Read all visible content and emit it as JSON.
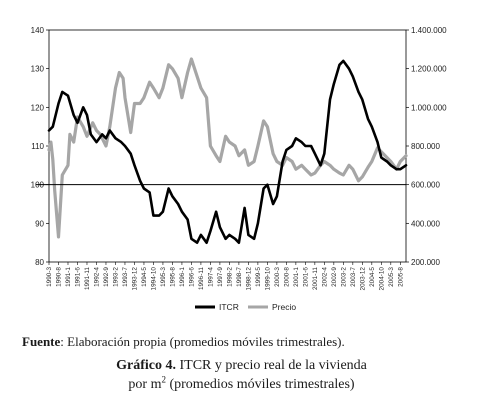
{
  "figure": {
    "source_label": "Fuente",
    "source_text": ": Elaboración propia (promedios móviles trimestrales).",
    "caption_label": "Gráfico 4.",
    "caption_line1": " ITCR y precio real de la vivienda",
    "caption_line2_pre": "por m",
    "caption_line2_sup": "2",
    "caption_line2_post": " (promedios móviles trimestrales)"
  },
  "chart_data": {
    "type": "line",
    "title": "",
    "y_left": {
      "label": "",
      "range": [
        80,
        140
      ],
      "ticks": [
        "80",
        "90",
        "100",
        "110",
        "120",
        "130",
        "140"
      ]
    },
    "y_right": {
      "label": "",
      "range": [
        200000,
        1400000
      ],
      "ticks": [
        "200.000",
        "400.000",
        "600.000",
        "800.000",
        "1.000.000",
        "1.200.000",
        "1.400.000"
      ]
    },
    "reference_line": {
      "axis": "left",
      "value": 100
    },
    "legend_position": "bottom",
    "x_ticks": [
      "1990-3",
      "1990-8",
      "1991-1",
      "1991-6",
      "1991-11",
      "1992-4",
      "1992-9",
      "1993-2",
      "1993-7",
      "1993-12",
      "1994-5",
      "1994-10",
      "1995-3",
      "1995-8",
      "1996-1",
      "1996-6",
      "1996-11",
      "1997-4",
      "1997-9",
      "1998-2",
      "1998-7",
      "1998-12",
      "1999-5",
      "1999-10",
      "2000-3",
      "2000-8",
      "2001-1",
      "2001-6",
      "2001-11",
      "2002-4",
      "2002-9",
      "2003-2",
      "2003-7",
      "2003-12",
      "2004-5",
      "2004-10",
      "2005-3",
      "2005-8"
    ],
    "series": [
      {
        "name": "ITCR",
        "axis": "left",
        "color": "#000000",
        "anchors": [
          [
            "1990-3",
            114
          ],
          [
            "1990-5",
            115
          ],
          [
            "1990-8",
            121
          ],
          [
            "1990-10",
            124
          ],
          [
            "1991-1",
            123
          ],
          [
            "1991-4",
            118
          ],
          [
            "1991-6",
            116
          ],
          [
            "1991-9",
            120
          ],
          [
            "1991-11",
            118
          ],
          [
            "1992-1",
            113
          ],
          [
            "1992-4",
            111
          ],
          [
            "1992-7",
            113
          ],
          [
            "1992-9",
            112
          ],
          [
            "1992-11",
            114
          ],
          [
            "1993-2",
            112
          ],
          [
            "1993-5",
            111
          ],
          [
            "1993-7",
            110
          ],
          [
            "1993-10",
            108
          ],
          [
            "1993-12",
            105
          ],
          [
            "1994-3",
            101
          ],
          [
            "1994-5",
            99
          ],
          [
            "1994-8",
            98
          ],
          [
            "1994-10",
            92
          ],
          [
            "1995-1",
            92
          ],
          [
            "1995-3",
            93
          ],
          [
            "1995-6",
            99
          ],
          [
            "1995-8",
            97
          ],
          [
            "1995-11",
            95
          ],
          [
            "1996-1",
            93
          ],
          [
            "1996-4",
            91
          ],
          [
            "1996-6",
            86
          ],
          [
            "1996-9",
            85
          ],
          [
            "1996-11",
            87
          ],
          [
            "1997-2",
            85
          ],
          [
            "1997-4",
            88
          ],
          [
            "1997-7",
            93
          ],
          [
            "1997-9",
            89
          ],
          [
            "1997-12",
            86
          ],
          [
            "1998-2",
            87
          ],
          [
            "1998-5",
            86
          ],
          [
            "1998-7",
            85
          ],
          [
            "1998-10",
            94
          ],
          [
            "1998-12",
            87
          ],
          [
            "1999-3",
            86
          ],
          [
            "1999-5",
            90
          ],
          [
            "1999-8",
            99
          ],
          [
            "1999-10",
            100
          ],
          [
            "2000-1",
            95
          ],
          [
            "2000-3",
            97
          ],
          [
            "2000-6",
            106
          ],
          [
            "2000-8",
            109
          ],
          [
            "2000-11",
            110
          ],
          [
            "2001-1",
            112
          ],
          [
            "2001-4",
            111
          ],
          [
            "2001-6",
            110
          ],
          [
            "2001-9",
            110
          ],
          [
            "2001-11",
            108
          ],
          [
            "2002-2",
            105
          ],
          [
            "2002-4",
            108
          ],
          [
            "2002-7",
            122
          ],
          [
            "2002-9",
            126
          ],
          [
            "2002-12",
            131
          ],
          [
            "2003-2",
            132
          ],
          [
            "2003-5",
            130
          ],
          [
            "2003-7",
            128
          ],
          [
            "2003-10",
            124
          ],
          [
            "2003-12",
            122
          ],
          [
            "2004-3",
            117
          ],
          [
            "2004-5",
            115
          ],
          [
            "2004-8",
            111
          ],
          [
            "2004-10",
            107
          ],
          [
            "2005-1",
            106
          ],
          [
            "2005-3",
            105
          ],
          [
            "2005-6",
            104
          ],
          [
            "2005-8",
            104
          ],
          [
            "2005-11",
            105
          ]
        ]
      },
      {
        "name": "Precio",
        "axis": "right",
        "color": "#a6a6a6",
        "anchors": [
          [
            "1990-3",
            780000
          ],
          [
            "1990-4",
            820000
          ],
          [
            "1990-5",
            730000
          ],
          [
            "1990-6",
            570000
          ],
          [
            "1990-8",
            330000
          ],
          [
            "1990-10",
            650000
          ],
          [
            "1991-1",
            700000
          ],
          [
            "1991-2",
            860000
          ],
          [
            "1991-4",
            820000
          ],
          [
            "1991-6",
            950000
          ],
          [
            "1991-9",
            900000
          ],
          [
            "1991-11",
            850000
          ],
          [
            "1992-2",
            920000
          ],
          [
            "1992-4",
            880000
          ],
          [
            "1992-6",
            860000
          ],
          [
            "1992-9",
            800000
          ],
          [
            "1992-11",
            900000
          ],
          [
            "1993-2",
            1100000
          ],
          [
            "1993-4",
            1180000
          ],
          [
            "1993-6",
            1150000
          ],
          [
            "1993-7",
            1050000
          ],
          [
            "1993-10",
            870000
          ],
          [
            "1993-12",
            1020000
          ],
          [
            "1994-3",
            1020000
          ],
          [
            "1994-5",
            1050000
          ],
          [
            "1994-8",
            1130000
          ],
          [
            "1994-10",
            1100000
          ],
          [
            "1995-1",
            1050000
          ],
          [
            "1995-3",
            1100000
          ],
          [
            "1995-6",
            1220000
          ],
          [
            "1995-8",
            1200000
          ],
          [
            "1995-11",
            1150000
          ],
          [
            "1996-1",
            1050000
          ],
          [
            "1996-4",
            1180000
          ],
          [
            "1996-6",
            1250000
          ],
          [
            "1996-9",
            1160000
          ],
          [
            "1996-11",
            1100000
          ],
          [
            "1997-2",
            1050000
          ],
          [
            "1997-4",
            800000
          ],
          [
            "1997-7",
            750000
          ],
          [
            "1997-9",
            720000
          ],
          [
            "1997-12",
            850000
          ],
          [
            "1998-2",
            820000
          ],
          [
            "1998-5",
            800000
          ],
          [
            "1998-7",
            750000
          ],
          [
            "1998-10",
            780000
          ],
          [
            "1998-12",
            700000
          ],
          [
            "1999-3",
            720000
          ],
          [
            "1999-5",
            800000
          ],
          [
            "1999-8",
            930000
          ],
          [
            "1999-10",
            900000
          ],
          [
            "2000-1",
            760000
          ],
          [
            "2000-3",
            720000
          ],
          [
            "2000-6",
            700000
          ],
          [
            "2000-8",
            740000
          ],
          [
            "2000-11",
            720000
          ],
          [
            "2001-1",
            680000
          ],
          [
            "2001-4",
            700000
          ],
          [
            "2001-6",
            680000
          ],
          [
            "2001-9",
            650000
          ],
          [
            "2001-11",
            660000
          ],
          [
            "2002-2",
            700000
          ],
          [
            "2002-4",
            720000
          ],
          [
            "2002-7",
            700000
          ],
          [
            "2002-9",
            680000
          ],
          [
            "2002-12",
            660000
          ],
          [
            "2003-2",
            650000
          ],
          [
            "2003-5",
            700000
          ],
          [
            "2003-7",
            680000
          ],
          [
            "2003-10",
            620000
          ],
          [
            "2003-12",
            640000
          ],
          [
            "2004-3",
            690000
          ],
          [
            "2004-5",
            720000
          ],
          [
            "2004-8",
            790000
          ],
          [
            "2004-10",
            770000
          ],
          [
            "2005-1",
            740000
          ],
          [
            "2005-3",
            720000
          ],
          [
            "2005-6",
            680000
          ],
          [
            "2005-8",
            720000
          ],
          [
            "2005-11",
            750000
          ]
        ]
      }
    ]
  }
}
